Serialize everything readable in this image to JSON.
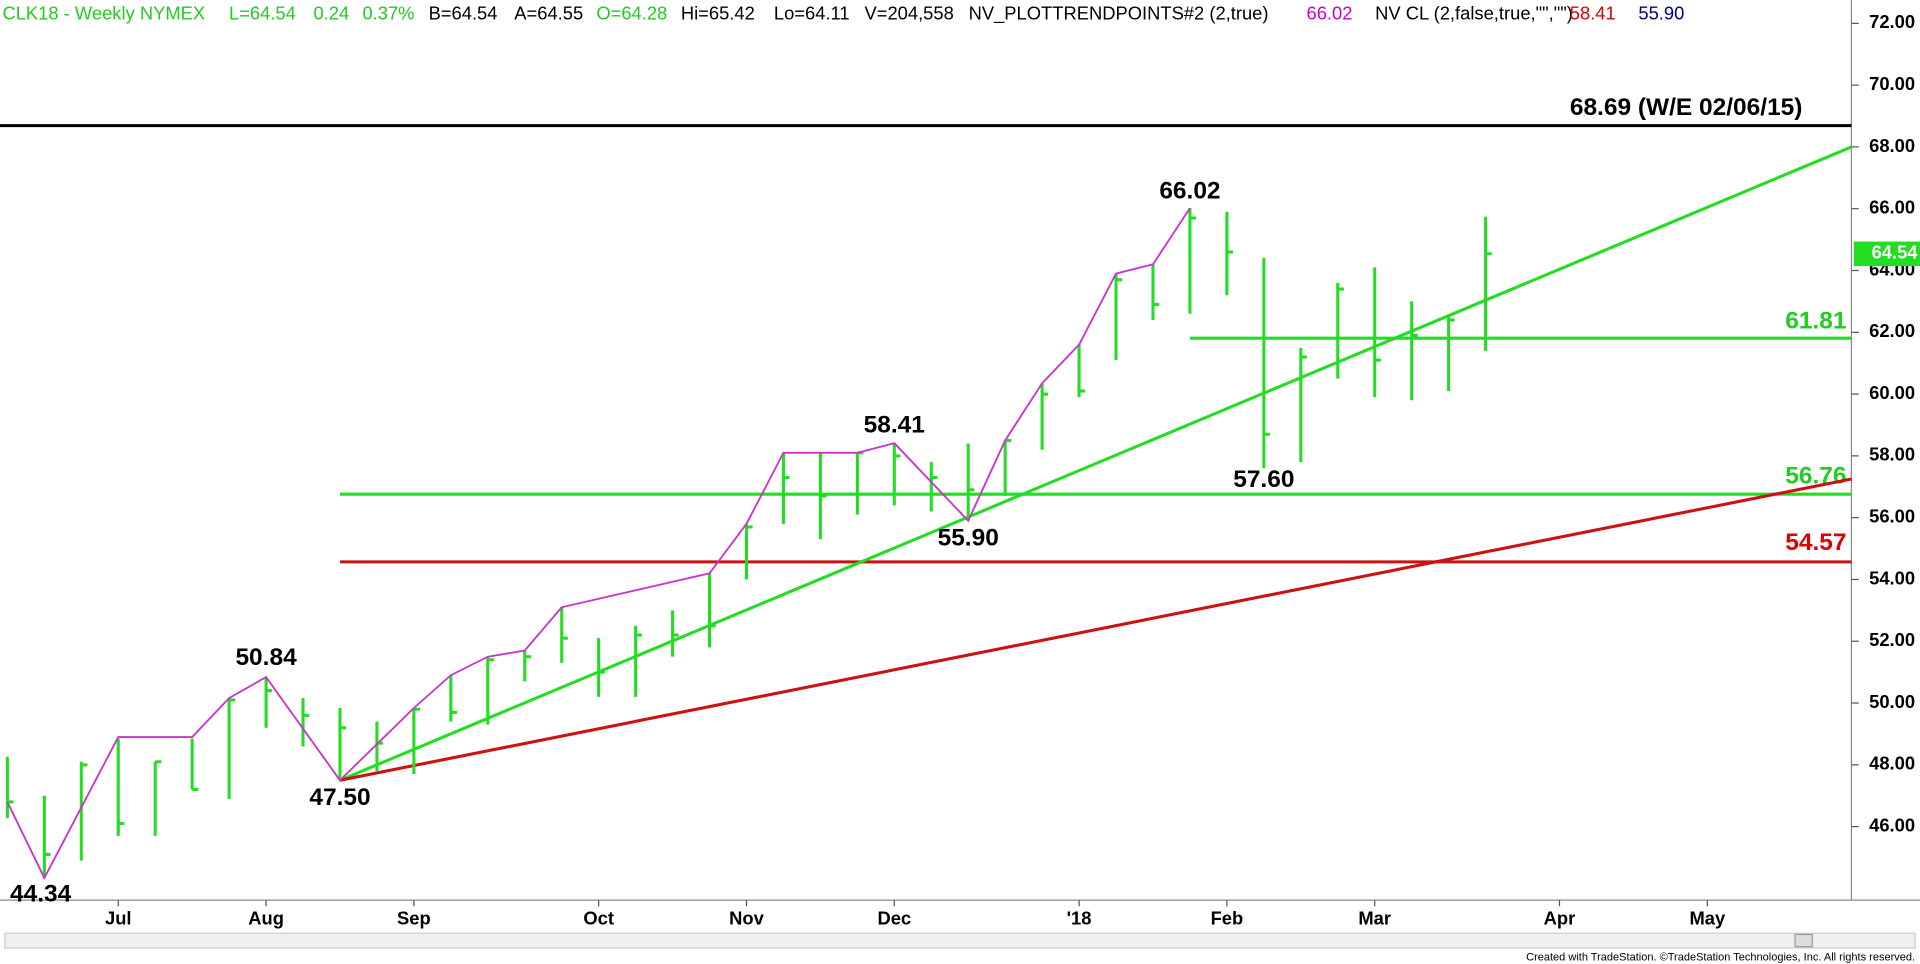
{
  "chart_data": {
    "type": "ohlc",
    "header": [
      {
        "text": "CLK18 - Weekly  NYMEX",
        "color": "#22cc22"
      },
      {
        "text": "L=64.54",
        "color": "#22cc22"
      },
      {
        "text": "0.24",
        "color": "#22cc22"
      },
      {
        "text": "0.37%",
        "color": "#22cc22"
      },
      {
        "text": "B=64.54",
        "color": "#000000"
      },
      {
        "text": "A=64.55",
        "color": "#000000"
      },
      {
        "text": "O=64.28",
        "color": "#22cc22"
      },
      {
        "text": "Hi=65.42",
        "color": "#000000"
      },
      {
        "text": "Lo=64.11",
        "color": "#000000"
      },
      {
        "text": "V=204,558",
        "color": "#000000"
      },
      {
        "text": "NV_PLOTTRENDPOINTS#2 (2,true)",
        "color": "#000000"
      },
      {
        "text": "66.02",
        "color": "#cc00cc"
      },
      {
        "text": "NV CL (2,false,true,\"\",\"\")",
        "color": "#000000"
      },
      {
        "text": "58.41",
        "color": "#dd0000"
      },
      {
        "text": "55.90",
        "color": "#000080"
      }
    ],
    "color": "#22dd22",
    "x": [
      0,
      1,
      2,
      3,
      4,
      5,
      6,
      7,
      8,
      9,
      10,
      11,
      12,
      13,
      14,
      15,
      16,
      17,
      18,
      19,
      20,
      21,
      22,
      23,
      24,
      25,
      26,
      27,
      28,
      29,
      30,
      31,
      32,
      33,
      34,
      35,
      36,
      37,
      38,
      39,
      40
    ],
    "high": [
      48.26,
      47.0,
      48.1,
      48.85,
      48.1,
      48.85,
      50.16,
      50.84,
      50.16,
      49.84,
      49.4,
      49.84,
      50.9,
      51.5,
      51.7,
      53.1,
      52.1,
      52.5,
      53.0,
      54.2,
      55.8,
      58.1,
      58.1,
      58.1,
      58.41,
      57.8,
      58.4,
      58.5,
      60.35,
      61.6,
      63.9,
      64.2,
      66.02,
      65.9,
      64.4,
      61.5,
      63.6,
      64.1,
      63.0,
      62.5,
      65.74
    ],
    "low": [
      46.28,
      44.34,
      44.9,
      45.7,
      45.7,
      47.2,
      46.9,
      49.2,
      48.6,
      47.5,
      47.8,
      47.7,
      49.4,
      49.3,
      50.7,
      51.3,
      50.2,
      50.2,
      51.5,
      51.8,
      54.0,
      55.8,
      55.3,
      56.1,
      56.4,
      56.2,
      55.9,
      56.7,
      58.2,
      59.9,
      61.1,
      62.4,
      62.6,
      63.2,
      57.6,
      57.8,
      60.5,
      59.9,
      59.8,
      60.1,
      61.4
    ],
    "close": [
      46.8,
      45.1,
      48.0,
      46.1,
      48.1,
      47.2,
      50.1,
      50.4,
      49.6,
      49.2,
      48.7,
      49.8,
      49.7,
      51.4,
      51.5,
      52.1,
      51.0,
      52.2,
      52.2,
      52.5,
      55.7,
      57.3,
      56.7,
      58.1,
      58.0,
      57.3,
      56.9,
      58.5,
      60.0,
      60.1,
      63.7,
      62.9,
      65.7,
      64.6,
      58.7,
      61.2,
      63.4,
      61.1,
      61.9,
      62.4,
      64.54
    ],
    "trend_points": {
      "color": "#cc33cc",
      "x": [
        0,
        1,
        3,
        5,
        6,
        7,
        9,
        11,
        12,
        13,
        14,
        15,
        19,
        20,
        21,
        23,
        24,
        26,
        27,
        28,
        29,
        30,
        31,
        32
      ],
      "y": [
        46.8,
        44.34,
        48.9,
        48.9,
        50.16,
        50.84,
        47.5,
        49.84,
        50.9,
        51.5,
        51.7,
        53.1,
        54.2,
        55.8,
        58.1,
        58.1,
        58.41,
        55.9,
        58.5,
        60.35,
        61.6,
        63.9,
        64.2,
        66.02
      ]
    },
    "trendlines": [
      {
        "color": "#22dd22",
        "x": [
          9,
          49.9
        ],
        "y": [
          47.5,
          68.0
        ]
      },
      {
        "color": "#cc1111",
        "x": [
          9,
          49.9
        ],
        "y": [
          47.5,
          57.25
        ]
      }
    ],
    "hlines": [
      {
        "value": 68.69,
        "label": "68.69 (W/E 02/06/15)",
        "start": -0.2,
        "color": "#000000",
        "text_color": "#000000"
      },
      {
        "value": 61.81,
        "start": 32,
        "color": "#22dd22",
        "text_color": "#22cc22"
      },
      {
        "value": 56.76,
        "start": 9,
        "color": "#22dd22",
        "text_color": "#22cc22"
      },
      {
        "value": 54.57,
        "start": 9,
        "color": "#cc1111",
        "text_color": "#dd0000"
      }
    ],
    "annotations": [
      {
        "text": "66.02",
        "x": 32,
        "y": 66.02
      },
      {
        "text": "58.41",
        "x": 24,
        "y": 58.41
      },
      {
        "text": "55.90",
        "x": 26,
        "y": 55.9
      },
      {
        "text": "57.60",
        "x": 34,
        "y": 57.6
      },
      {
        "text": "50.84",
        "x": 7,
        "y": 50.84
      },
      {
        "text": "47.50",
        "x": 9,
        "y": 47.5
      },
      {
        "text": "44.34",
        "x": 1,
        "y": 44.34
      }
    ],
    "last_price": 64.54,
    "last_price_color": "#22dd22",
    "xlim": [
      -0.2,
      49.9
    ],
    "xticks": [
      {
        "value": 3,
        "label": "Jul"
      },
      {
        "value": 7,
        "label": "Aug"
      },
      {
        "value": 11,
        "label": "Sep"
      },
      {
        "value": 16,
        "label": "Oct"
      },
      {
        "value": 20,
        "label": "Nov"
      },
      {
        "value": 24,
        "label": "Dec"
      },
      {
        "value": 29,
        "label": "'18"
      },
      {
        "value": 33,
        "label": "Feb"
      },
      {
        "value": 37,
        "label": "Mar"
      },
      {
        "value": 42,
        "label": "Apr"
      },
      {
        "value": 46,
        "label": "May"
      }
    ],
    "ylim": [
      43.62,
      72.75
    ],
    "yticks": [
      {
        "value": 46,
        "label": "46.00"
      },
      {
        "value": 48,
        "label": "48.00"
      },
      {
        "value": 50,
        "label": "50.00"
      },
      {
        "value": 52,
        "label": "52.00"
      },
      {
        "value": 54,
        "label": "54.00"
      },
      {
        "value": 56,
        "label": "56.00"
      },
      {
        "value": 58,
        "label": "58.00"
      },
      {
        "value": 60,
        "label": "60.00"
      },
      {
        "value": 62,
        "label": "62.00"
      },
      {
        "value": 64,
        "label": "64.00"
      },
      {
        "value": 66,
        "label": "66.00"
      },
      {
        "value": 68,
        "label": "68.00"
      },
      {
        "value": 70,
        "label": "70.00"
      },
      {
        "value": 72,
        "label": "72.00"
      }
    ],
    "footer": "Created with TradeStation. ©TradeStation Technologies, Inc. All rights reserved."
  }
}
